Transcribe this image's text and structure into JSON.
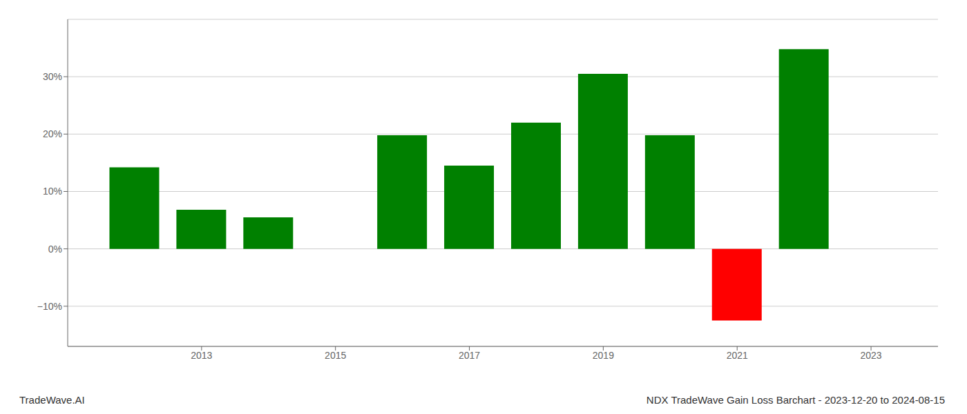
{
  "chart_data": {
    "type": "bar",
    "title": "NDX TradeWave Gain Loss Barchart - 2023-12-20 to 2024-08-15",
    "annotations": [
      "TradeWave.AI"
    ],
    "x": [
      2012,
      2013,
      2014,
      2016,
      2017,
      2018,
      2019,
      2020,
      2021,
      2022
    ],
    "values": [
      14.2,
      6.8,
      5.5,
      19.8,
      14.5,
      22.0,
      30.5,
      19.8,
      -12.5,
      34.8
    ],
    "colors": [
      "#008000",
      "#008000",
      "#008000",
      "#008000",
      "#008000",
      "#008000",
      "#008000",
      "#008000",
      "#ff0000",
      "#008000"
    ],
    "xlim": [
      2011.0,
      2024.0
    ],
    "ylim": [
      -17,
      40
    ],
    "xticks": [
      2013,
      2015,
      2017,
      2019,
      2021,
      2023
    ],
    "yticks": [
      {
        "value": -10,
        "label": "−10%"
      },
      {
        "value": 0,
        "label": "0%"
      },
      {
        "value": 10,
        "label": "10%"
      },
      {
        "value": 20,
        "label": "20%"
      },
      {
        "value": 30,
        "label": "30%"
      }
    ],
    "grid": true
  }
}
